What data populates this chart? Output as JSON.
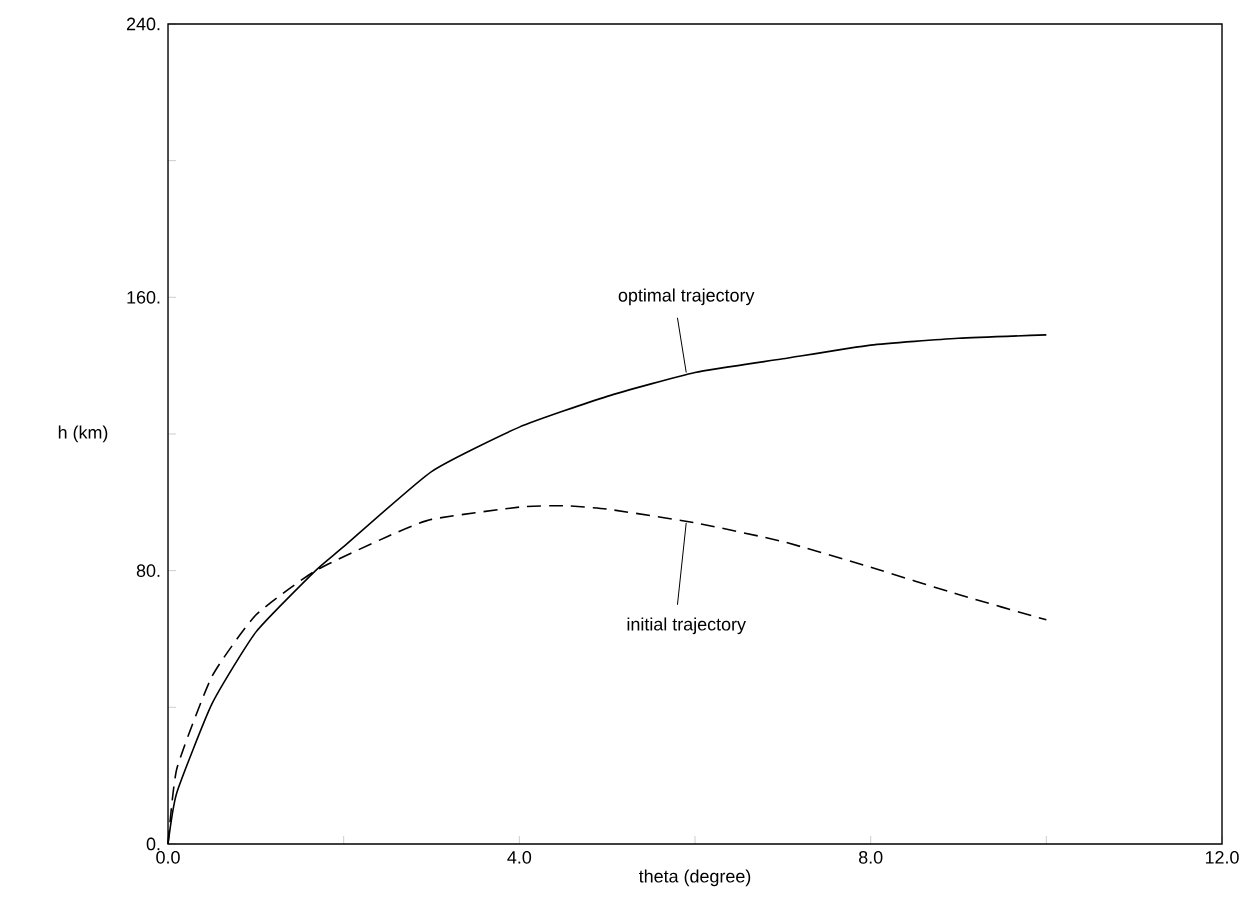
{
  "chart_data": {
    "type": "line",
    "xlabel": "theta (degree)",
    "ylabel": "h (km)",
    "xlim": [
      0,
      12
    ],
    "ylim": [
      0,
      240
    ],
    "xticks": [
      {
        "value": 0,
        "label": "0.0"
      },
      {
        "value": 2,
        "label": null
      },
      {
        "value": 4,
        "label": "4.0"
      },
      {
        "value": 6,
        "label": null
      },
      {
        "value": 8,
        "label": "8.0"
      },
      {
        "value": 10,
        "label": null
      },
      {
        "value": 12,
        "label": "12.0"
      }
    ],
    "yticks": [
      {
        "value": 0,
        "label": "0."
      },
      {
        "value": 40,
        "label": null
      },
      {
        "value": 80,
        "label": "80."
      },
      {
        "value": 120,
        "label": null
      },
      {
        "value": 160,
        "label": "160."
      },
      {
        "value": 200,
        "label": null
      },
      {
        "value": 240,
        "label": "240."
      }
    ],
    "series": [
      {
        "color": "#000000",
        "line_style": "solid",
        "x": [
          0,
          0.1,
          0.5,
          1,
          1.68,
          2,
          3,
          4,
          5,
          6,
          7,
          8,
          9,
          10
        ],
        "values": [
          0,
          15,
          41,
          62,
          80,
          87,
          109,
          122,
          131,
          138,
          142,
          146,
          148,
          149
        ]
      },
      {
        "color": "#000000",
        "line_style": "dashed",
        "x": [
          0,
          0.1,
          0.5,
          1,
          1.68,
          2.5,
          3,
          4,
          4.5,
          5,
          6,
          7,
          8,
          9,
          10
        ],
        "values": [
          0,
          22,
          49,
          67,
          80,
          90,
          95,
          98.6,
          99,
          98,
          94,
          88.5,
          81,
          73,
          65.6
        ]
      }
    ],
    "annotations": [
      {
        "text": "optimal trajectory",
        "x": 5.9,
        "y": 138
      },
      {
        "text": "initial trajectory",
        "x": 5.9,
        "y": 94
      }
    ]
  }
}
